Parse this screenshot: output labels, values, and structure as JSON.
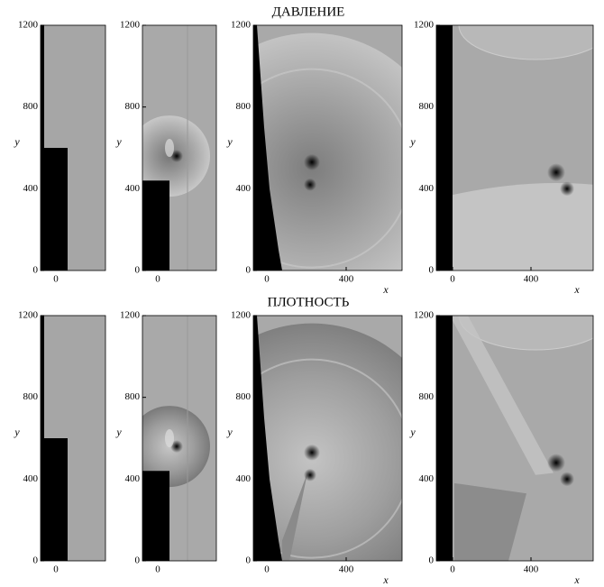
{
  "rows": [
    {
      "title": "ДАВЛЕНИЕ",
      "panels": [
        {
          "yticks": [
            0,
            400,
            800,
            1200
          ],
          "xticks": [
            0
          ],
          "ylabel": "y"
        },
        {
          "yticks": [
            0,
            400,
            800,
            1200
          ],
          "xticks": [
            0
          ],
          "ylabel": "y"
        },
        {
          "yticks": [
            0,
            400,
            800,
            1200
          ],
          "xticks": [
            0,
            400
          ],
          "ylabel": "y",
          "xlabel": "x"
        },
        {
          "yticks": [
            0,
            400,
            800,
            1200
          ],
          "xticks": [
            0,
            400
          ],
          "ylabel": "y",
          "xlabel": "x"
        }
      ]
    },
    {
      "title": "ПЛОТНОСТЬ",
      "panels": [
        {
          "yticks": [
            0,
            400,
            800,
            1200
          ],
          "xticks": [
            0
          ],
          "ylabel": "y"
        },
        {
          "yticks": [
            0,
            400,
            800,
            1200
          ],
          "xticks": [
            0
          ],
          "ylabel": "y"
        },
        {
          "yticks": [
            0,
            400,
            800,
            1200
          ],
          "xticks": [
            0,
            400
          ],
          "ylabel": "y",
          "xlabel": "x"
        },
        {
          "yticks": [
            0,
            400,
            800,
            1200
          ],
          "xticks": [
            0,
            400
          ],
          "ylabel": "y",
          "xlabel": "x"
        }
      ]
    }
  ]
}
